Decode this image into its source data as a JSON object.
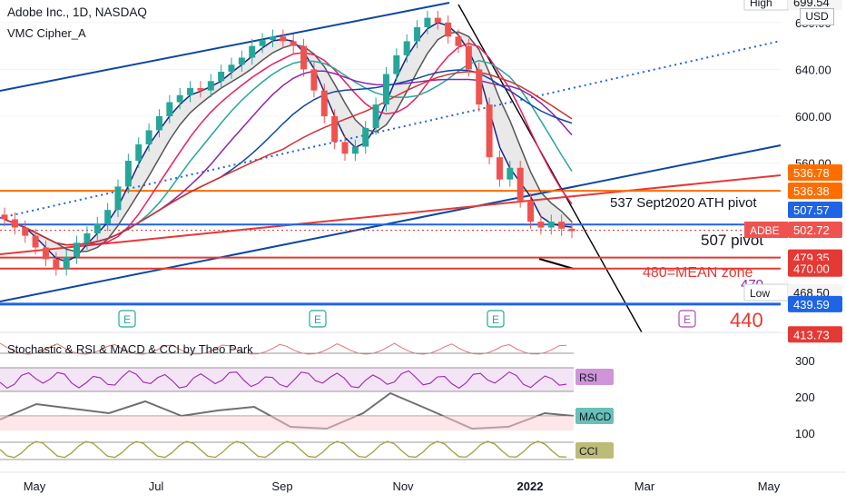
{
  "header": {
    "symbol_title": "Adobe Inc., 1D, NASDAQ",
    "indicator_name": "VMC Cipher_A",
    "sub_indicator_name": "Stochastic & RSI & MACD & CCI by Theo Park",
    "currency_badge": "USD"
  },
  "colors": {
    "up_candle": "#26a69a",
    "down_candle": "#ef5350",
    "channel_line": "#0d47a1",
    "orange_level": "#ff6d00",
    "red_level": "#e53935",
    "blue_level": "#1e64e6",
    "rsi_band": "#f3e5f5",
    "rsi_line": "#9c27b0",
    "macd_line": "#707070",
    "cci_line": "#a0a040"
  },
  "chart_data": {
    "type": "candlestick",
    "price_axis_ticks": [
      600,
      640,
      680,
      560
    ],
    "price_axis_tick_labels": [
      "600.00",
      "640.00",
      "680.00",
      "560.00"
    ],
    "price_range": [
      408,
      700
    ],
    "x_axis_labels": [
      "May",
      "Jul",
      "Sep",
      "Nov",
      "2022",
      "Mar",
      "May"
    ],
    "lower_axis_ticks": [
      "300",
      "200",
      "100"
    ],
    "price_labels": [
      {
        "text": "High",
        "value": "699.54",
        "kind": "high"
      },
      {
        "text": "",
        "value": "536.78",
        "kind": "orange"
      },
      {
        "text": "",
        "value": "536.38",
        "kind": "orange"
      },
      {
        "text": "",
        "value": "507.57",
        "kind": "blue"
      },
      {
        "text": "ADBE",
        "value": "502.72",
        "kind": "last"
      },
      {
        "text": "",
        "value": "479.35",
        "kind": "red"
      },
      {
        "text": "",
        "value": "470.00",
        "kind": "red"
      },
      {
        "text": "Low",
        "value": "468.50",
        "kind": "low"
      },
      {
        "text": "",
        "value": "439.59",
        "kind": "blue"
      },
      {
        "text": "",
        "value": "413.73",
        "kind": "red"
      }
    ],
    "annotations": [
      "537 Sept2020 ATH pivot",
      "507 pivot",
      "480=MEAN zone",
      "470",
      "440"
    ],
    "earnings_markers": [
      "E",
      "E",
      "E",
      "E"
    ],
    "pane_labels": [
      "RSI",
      "MACD",
      "CCI"
    ],
    "close_series": [
      512,
      505,
      498,
      488,
      478,
      470,
      480,
      492,
      500,
      508,
      520,
      540,
      562,
      576,
      588,
      600,
      612,
      618,
      624,
      622,
      630,
      638,
      644,
      650,
      660,
      665,
      668,
      664,
      660,
      640,
      622,
      600,
      578,
      568,
      574,
      590,
      610,
      636,
      652,
      664,
      676,
      684,
      680,
      668,
      660,
      640,
      610,
      565,
      546,
      556,
      528,
      510,
      505,
      510,
      504,
      502
    ]
  }
}
